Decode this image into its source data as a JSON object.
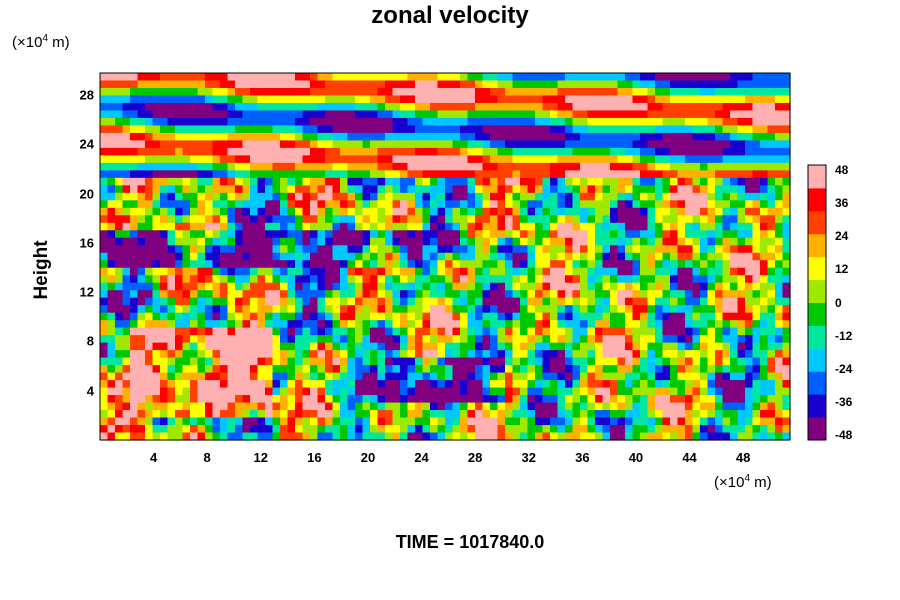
{
  "chart_data": {
    "type": "heatmap",
    "title": "zonal velocity",
    "ylabel": "Height",
    "y_unit": "(×10⁴ m)",
    "x_unit": "(×10⁴ m)",
    "footer": "TIME = 1017840.0",
    "x_ticks": [
      "4",
      "8",
      "12",
      "16",
      "20",
      "24",
      "28",
      "32",
      "36",
      "40",
      "44",
      "48"
    ],
    "y_ticks": [
      "28",
      "24",
      "20",
      "16",
      "12",
      "8",
      "4"
    ],
    "colorbar_ticks": [
      "48",
      "36",
      "24",
      "12",
      "0",
      "-12",
      "-24",
      "-36",
      "-48"
    ],
    "xlim": [
      0,
      51.5
    ],
    "ylim": [
      0,
      29.8
    ],
    "zlim": [
      -48,
      48
    ],
    "colormap": [
      "#800080",
      "#1a00d0",
      "#0060ff",
      "#00c8ff",
      "#00e8a0",
      "#00c800",
      "#a0e800",
      "#ffff00",
      "#ffb000",
      "#ff4000",
      "#ff0000",
      "#ffb0b0"
    ]
  }
}
